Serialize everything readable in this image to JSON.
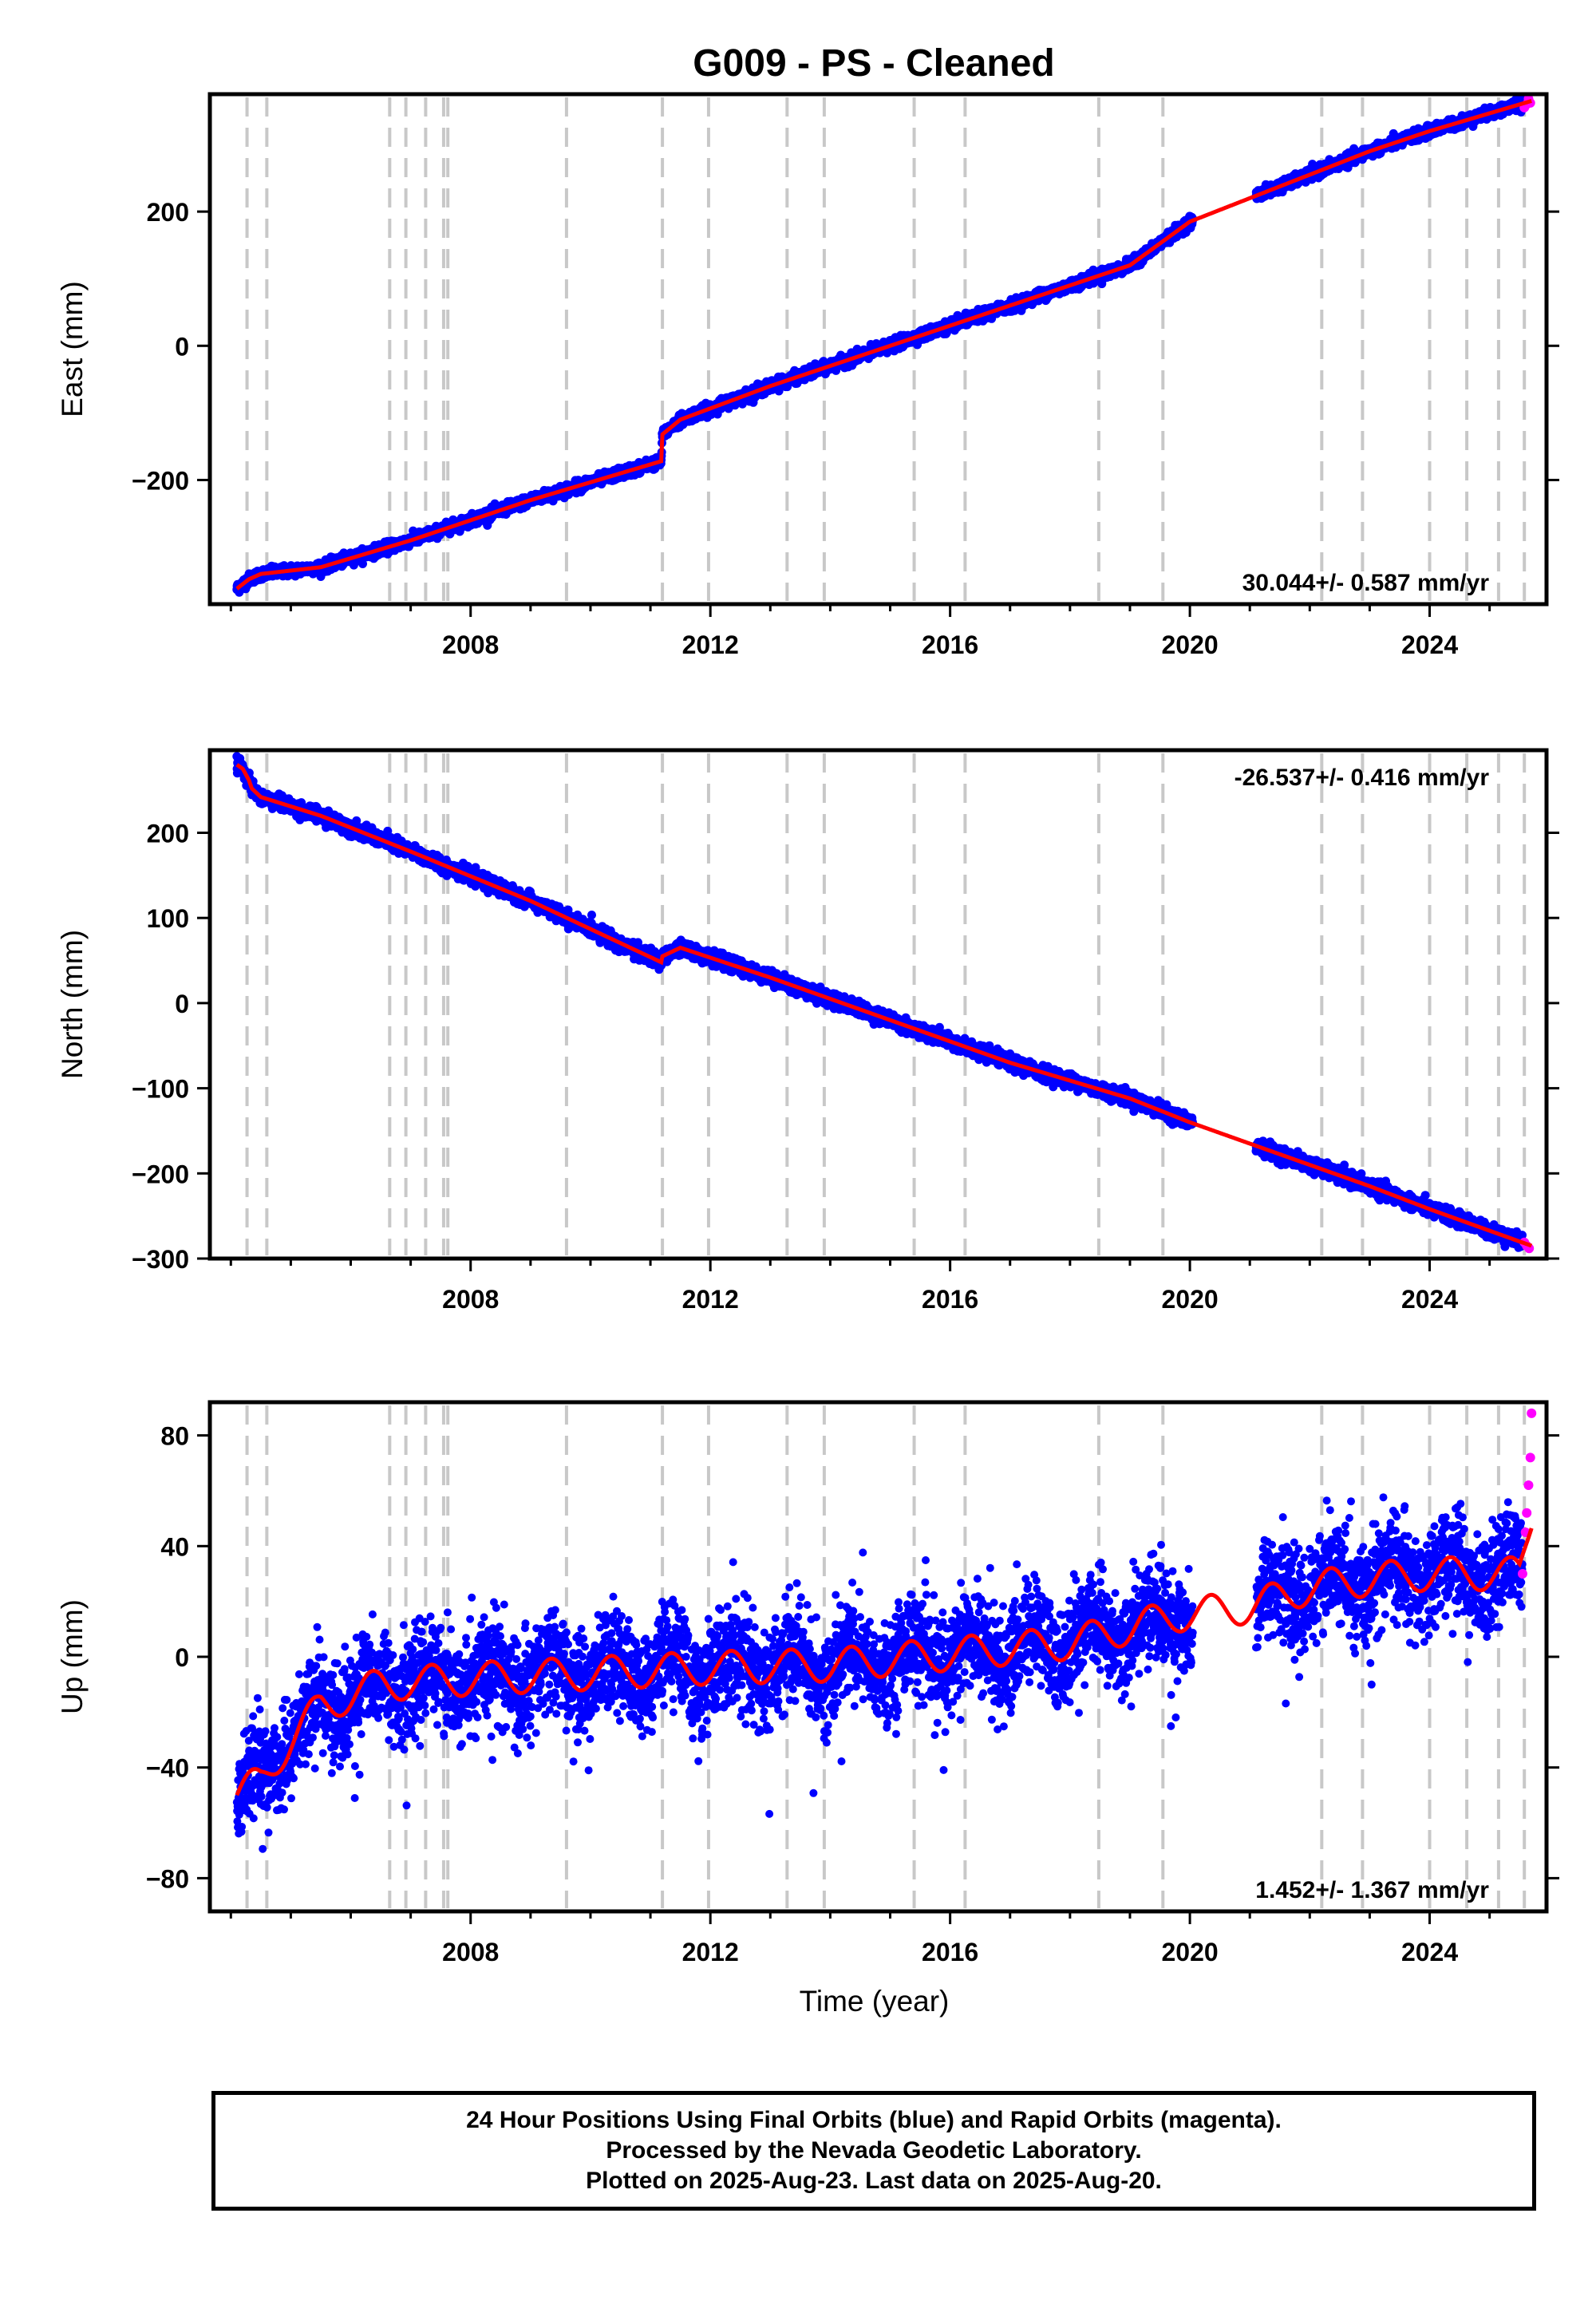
{
  "title": "G009  - PS - Cleaned",
  "footer": {
    "line1": "24 Hour Positions Using Final Orbits (blue) and Rapid Orbits (magenta).",
    "line2": "Processed by the Nevada Geodetic Laboratory.",
    "line3": "Plotted on 2025-Aug-23. Last data on 2025-Aug-20."
  },
  "colors": {
    "final": "#0000ff",
    "rapid": "#ff00ff",
    "model": "#ff0000",
    "events": "#c8c8c8"
  },
  "chart_data": [
    {
      "type": "scatter",
      "component": "east",
      "ylabel": "East (mm)",
      "xlim": [
        2003.65,
        2025.95
      ],
      "ylim": [
        -385,
        375
      ],
      "x_ticks": [
        2008,
        2012,
        2016,
        2020,
        2024
      ],
      "y_ticks": [
        -200,
        0,
        200
      ],
      "rate_label": "30.044+/- 0.587 mm/yr",
      "rate_position": "bottom-right",
      "events": [
        2004.27,
        2004.6,
        2006.65,
        2006.92,
        2007.25,
        2007.55,
        2007.62,
        2009.6,
        2011.2,
        2011.97,
        2013.28,
        2013.9,
        2015.4,
        2016.25,
        2018.48,
        2019.55,
        2022.2,
        2022.88,
        2024.0,
        2024.62,
        2025.15,
        2025.58
      ],
      "model": {
        "x": [
          2004.1,
          2004.3,
          2004.5,
          2005.5,
          2007.0,
          2009.0,
          2011.18,
          2011.2,
          2011.5,
          2013.0,
          2015.0,
          2017.0,
          2019.0,
          2020.0,
          2021.0,
          2023.0,
          2024.0,
          2025.7
        ],
        "y": [
          -362,
          -348,
          -340,
          -330,
          -290,
          -230,
          -172,
          -132,
          -110,
          -60,
          0,
          60,
          120,
          185,
          220,
          290,
          320,
          365
        ]
      },
      "gap": [
        2020.05,
        2021.1
      ],
      "noise": 4,
      "seasonal": 0,
      "rapid": {
        "x": [
          2025.58,
          2025.62,
          2025.65,
          2025.68
        ],
        "y": [
          355,
          360,
          368,
          362
        ]
      }
    },
    {
      "type": "scatter",
      "component": "north",
      "ylabel": "North (mm)",
      "xlim": [
        2003.65,
        2025.95
      ],
      "ylim": [
        -300,
        297
      ],
      "x_ticks": [
        2008,
        2012,
        2016,
        2020,
        2024
      ],
      "y_ticks": [
        -300,
        -200,
        -100,
        0,
        100,
        200
      ],
      "rate_label": "-26.537+/- 0.416 mm/yr",
      "rate_position": "top-right",
      "events": [
        2004.27,
        2004.6,
        2006.65,
        2006.92,
        2007.25,
        2007.55,
        2007.62,
        2009.6,
        2011.2,
        2011.97,
        2013.28,
        2013.9,
        2015.4,
        2016.25,
        2018.48,
        2019.55,
        2022.2,
        2022.88,
        2024.0,
        2024.62,
        2025.15,
        2025.58
      ],
      "model": {
        "x": [
          2004.1,
          2004.2,
          2004.3,
          2004.35,
          2004.5,
          2005.5,
          2007.0,
          2009.0,
          2011.18,
          2011.2,
          2011.5,
          2013.0,
          2015.0,
          2017.0,
          2019.0,
          2020.0,
          2021.0,
          2023.0,
          2024.0,
          2025.7
        ],
        "y": [
          280,
          275,
          262,
          252,
          242,
          220,
          178,
          120,
          48,
          55,
          65,
          30,
          -20,
          -70,
          -112,
          -140,
          -165,
          -215,
          -242,
          -285
        ]
      },
      "gap": [
        2020.05,
        2021.1
      ],
      "noise": 4,
      "seasonal": 0,
      "rapid": {
        "x": [
          2025.58,
          2025.62,
          2025.66
        ],
        "y": [
          -281,
          -285,
          -288
        ]
      }
    },
    {
      "type": "scatter",
      "component": "up",
      "ylabel": "Up (mm)",
      "xlabel": "Time (year)",
      "xlim": [
        2003.65,
        2025.95
      ],
      "ylim": [
        -92,
        92
      ],
      "x_ticks": [
        2008,
        2012,
        2016,
        2020,
        2024
      ],
      "y_ticks": [
        -80,
        -40,
        0,
        40,
        80
      ],
      "rate_label": "1.452+/- 1.367 mm/yr",
      "rate_position": "bottom-right",
      "events": [
        2004.27,
        2004.6,
        2006.65,
        2006.92,
        2007.25,
        2007.55,
        2007.62,
        2009.6,
        2011.2,
        2011.97,
        2013.28,
        2013.9,
        2015.4,
        2016.25,
        2018.48,
        2019.55,
        2022.2,
        2022.88,
        2024.0,
        2024.62,
        2025.15,
        2025.58
      ],
      "model": {
        "x": [
          2004.1,
          2004.5,
          2005.0,
          2005.5,
          2006.5,
          2008.0,
          2010.0,
          2012.0,
          2014.0,
          2016.0,
          2018.0,
          2019.8,
          2021.0,
          2022.0,
          2023.0,
          2024.0,
          2025.5,
          2025.7
        ],
        "y": [
          -50,
          -45,
          -30,
          -18,
          -10,
          -8,
          -6,
          -4,
          -3,
          1,
          5,
          15,
          18,
          25,
          28,
          30,
          30,
          50
        ]
      },
      "gap": [
        2020.05,
        2021.1
      ],
      "noise": 9,
      "seasonal": 6,
      "rapid": {
        "x": [
          2025.55,
          2025.6,
          2025.62,
          2025.65,
          2025.68,
          2025.7
        ],
        "y": [
          30,
          45,
          52,
          62,
          72,
          88
        ]
      }
    }
  ]
}
